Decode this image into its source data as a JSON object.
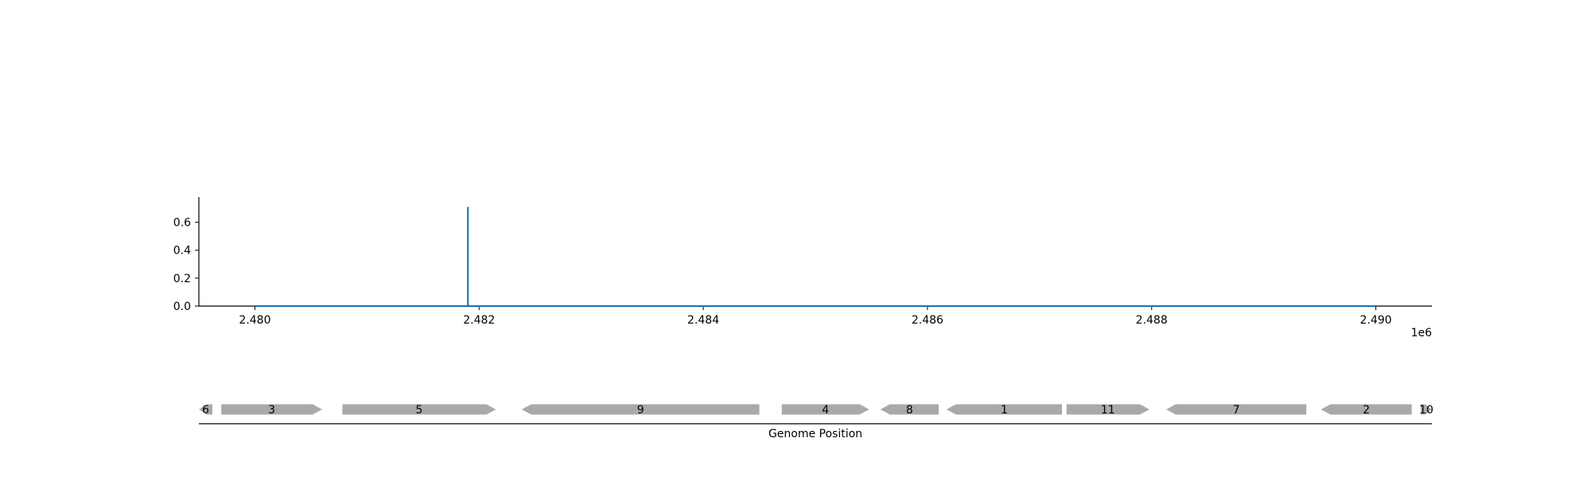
{
  "chart_data": [
    {
      "type": "line",
      "title": "",
      "xlabel": "",
      "ylabel": "",
      "x_offset_label": "1e6",
      "xlim": [
        2479500,
        2490500
      ],
      "ylim": [
        0,
        0.78
      ],
      "xticks": [
        2480000,
        2482000,
        2484000,
        2486000,
        2488000,
        2490000
      ],
      "xtick_labels": [
        "2.480",
        "2.482",
        "2.484",
        "2.486",
        "2.488",
        "2.490"
      ],
      "yticks": [
        0.0,
        0.2,
        0.4,
        0.6
      ],
      "ytick_labels": [
        "0.0",
        "0.2",
        "0.4",
        "0.6"
      ],
      "grid": false,
      "series": [
        {
          "color": "#1f77b4",
          "x": [
            2480000,
            2481900,
            2481900,
            2481900,
            2490000
          ],
          "y": [
            0.0,
            0.0,
            0.71,
            0.0,
            0.0
          ]
        }
      ]
    },
    {
      "type": "gene_track",
      "xlabel": "Genome Position",
      "xlim": [
        2479500,
        2490500
      ],
      "genes": [
        {
          "label": "6",
          "start": 2479500,
          "end": 2479620,
          "strand": "-"
        },
        {
          "label": "3",
          "start": 2479700,
          "end": 2480600,
          "strand": "+"
        },
        {
          "label": "5",
          "start": 2480780,
          "end": 2482150,
          "strand": "+"
        },
        {
          "label": "9",
          "start": 2482380,
          "end": 2484500,
          "strand": "-"
        },
        {
          "label": "4",
          "start": 2484700,
          "end": 2485480,
          "strand": "+"
        },
        {
          "label": "8",
          "start": 2485580,
          "end": 2486100,
          "strand": "-"
        },
        {
          "label": "1",
          "start": 2486170,
          "end": 2487200,
          "strand": "-"
        },
        {
          "label": "11",
          "start": 2487240,
          "end": 2487980,
          "strand": "+"
        },
        {
          "label": "7",
          "start": 2488130,
          "end": 2489380,
          "strand": "-"
        },
        {
          "label": "2",
          "start": 2489510,
          "end": 2490320,
          "strand": "-"
        },
        {
          "label": "10",
          "start": 2490400,
          "end": 2490500,
          "strand": "+"
        }
      ],
      "gene_color": "#a9a9a9"
    }
  ]
}
